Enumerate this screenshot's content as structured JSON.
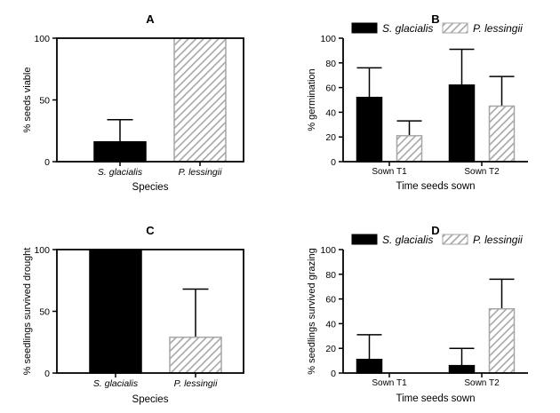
{
  "colors": {
    "glacialis": "#000000",
    "lessingii_stripe": "#a6a6a6",
    "axis": "#000000"
  },
  "chart_data": [
    {
      "panel": "A",
      "type": "bar",
      "xlabel": "Species",
      "ylabel": "% seeds viable",
      "ylim": [
        0,
        100
      ],
      "yticks": [
        0,
        50,
        100
      ],
      "categories": [
        "S. glacialis",
        "P. lessingii"
      ],
      "values": [
        16,
        100
      ],
      "errors": [
        18,
        0
      ],
      "fills": [
        "solid",
        "hatch"
      ],
      "frame": "box"
    },
    {
      "panel": "B",
      "type": "bar",
      "xlabel": "Time seeds sown",
      "ylabel": "% germination",
      "ylim": [
        0,
        100
      ],
      "yticks": [
        0,
        20,
        40,
        60,
        80,
        100
      ],
      "categories": [
        "Sown T1",
        "Sown T2"
      ],
      "series": [
        {
          "name": "S. glacialis",
          "fill": "solid",
          "values": [
            52,
            62
          ],
          "errors": [
            24,
            29
          ]
        },
        {
          "name": "P. lessingii",
          "fill": "hatch",
          "values": [
            21,
            45
          ],
          "errors": [
            12,
            24
          ]
        }
      ],
      "legend": "top",
      "frame": "open"
    },
    {
      "panel": "C",
      "type": "bar",
      "xlabel": "Species",
      "ylabel": "% seedlings survived drought",
      "ylim": [
        0,
        100
      ],
      "yticks": [
        0,
        50,
        100
      ],
      "categories": [
        "S. glacialis",
        "P. lessingii"
      ],
      "values": [
        100,
        29
      ],
      "errors": [
        0,
        39
      ],
      "fills": [
        "solid",
        "hatch"
      ],
      "frame": "box"
    },
    {
      "panel": "D",
      "type": "bar",
      "xlabel": "Time seeds sown",
      "ylabel": "% seedlings survived grazing",
      "ylim": [
        0,
        100
      ],
      "yticks": [
        0,
        20,
        40,
        60,
        80,
        100
      ],
      "categories": [
        "Sown T1",
        "Sown T2"
      ],
      "series": [
        {
          "name": "S. glacialis",
          "fill": "solid",
          "values": [
            11,
            6
          ],
          "errors": [
            20,
            14
          ]
        },
        {
          "name": "P. lessingii",
          "fill": "hatch",
          "values": [
            0,
            52
          ],
          "errors": [
            0,
            24
          ]
        }
      ],
      "legend": "top",
      "frame": "open"
    }
  ]
}
